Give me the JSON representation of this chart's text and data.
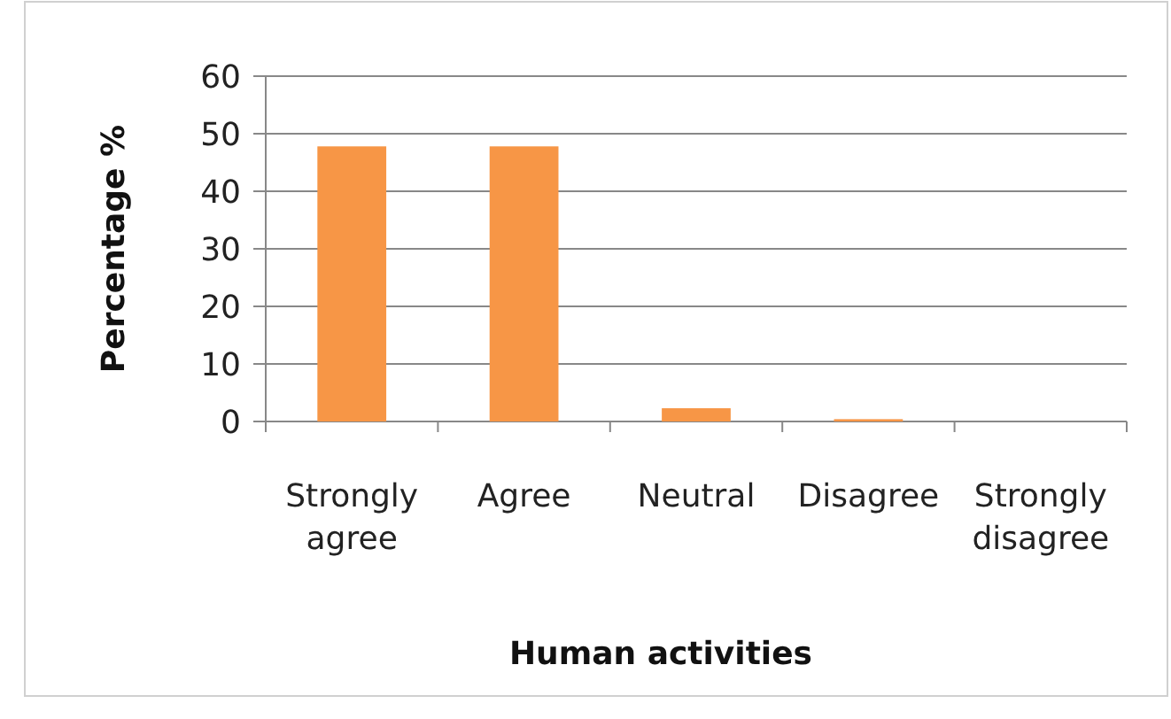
{
  "chart_data": {
    "type": "bar",
    "xlabel": "Human activities",
    "ylabel": "Percentage %",
    "categories": [
      "Strongly agree",
      "Agree",
      "Neutral",
      "Disagree",
      "Strongly disagree"
    ],
    "values": [
      47.8,
      47.8,
      2.3,
      0.4,
      0
    ],
    "color": "#f79646",
    "ylim": [
      0,
      60
    ],
    "yticks": [
      0,
      10,
      20,
      30,
      40,
      50,
      60
    ],
    "grid": "y"
  }
}
